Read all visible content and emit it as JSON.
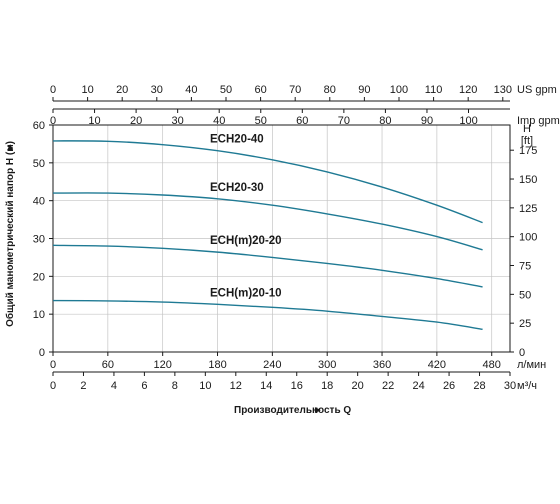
{
  "chart_data": {
    "type": "line",
    "x_unit": "л/мин",
    "y_unit_ft": "[ft]",
    "y_letter_ft": "H",
    "x_unit_m3h": "м³/ч",
    "us_gpm_unit": "US gpm",
    "imp_gpm_unit": "Imp gpm",
    "xlabel": "Производительность Q",
    "ylabel": "Общий манометрический напор Н (м)",
    "arrow_glyph": "►",
    "xlim": [
      0,
      500
    ],
    "ylim": [
      0,
      60
    ],
    "x_ticks": [
      "0",
      "60",
      "120",
      "180",
      "240",
      "300",
      "360",
      "420",
      "480"
    ],
    "y_ticks": [
      "0",
      "10",
      "20",
      "30",
      "40",
      "50",
      "60"
    ],
    "m3h_ticks": [
      "0",
      "2",
      "4",
      "6",
      "8",
      "10",
      "12",
      "14",
      "16",
      "18",
      "20",
      "22",
      "24",
      "26",
      "28",
      "30"
    ],
    "us_gpm_ticks": [
      "0",
      "10",
      "20",
      "30",
      "40",
      "50",
      "60",
      "70",
      "80",
      "90",
      "100",
      "110",
      "120",
      "130"
    ],
    "imp_gpm_ticks": [
      "0",
      "10",
      "20",
      "30",
      "40",
      "50",
      "60",
      "70",
      "80",
      "90",
      "100"
    ],
    "ft_ticks": [
      "0",
      "25",
      "50",
      "75",
      "100",
      "125",
      "150",
      "175"
    ],
    "grid": true,
    "line_color": "#1f7a94",
    "series": [
      {
        "name": "ECH20-40",
        "x": [
          0,
          60,
          120,
          180,
          240,
          300,
          360,
          420,
          470
        ],
        "y": [
          55.8,
          55.7,
          54.8,
          53.2,
          50.8,
          47.6,
          43.6,
          38.8,
          34.2
        ]
      },
      {
        "name": "ECH20-30",
        "x": [
          0,
          60,
          120,
          180,
          240,
          300,
          360,
          420,
          470
        ],
        "y": [
          42.0,
          42.0,
          41.5,
          40.5,
          38.8,
          36.5,
          33.8,
          30.5,
          27.0
        ]
      },
      {
        "name": "ECH(m)20-20",
        "x": [
          0,
          60,
          120,
          180,
          240,
          300,
          360,
          420,
          470
        ],
        "y": [
          28.2,
          28.0,
          27.4,
          26.4,
          25.0,
          23.4,
          21.6,
          19.4,
          17.2
        ]
      },
      {
        "name": "ECH(m)20-10",
        "x": [
          0,
          60,
          120,
          180,
          240,
          300,
          360,
          420,
          470
        ],
        "y": [
          13.6,
          13.5,
          13.2,
          12.6,
          11.8,
          10.8,
          9.4,
          7.9,
          6.0
        ]
      }
    ]
  }
}
